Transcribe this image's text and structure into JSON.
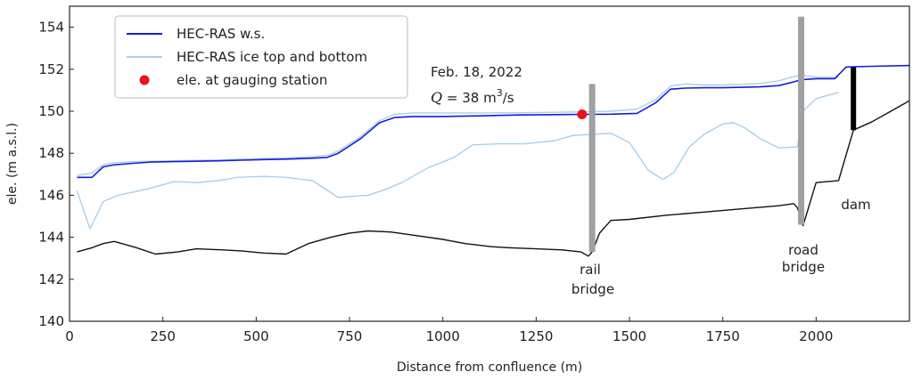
{
  "chart_data": {
    "type": "line",
    "title": "",
    "xlabel": "Distance from confluence (m)",
    "ylabel": "ele. (m a.s.l.)",
    "xlim": [
      0,
      2250
    ],
    "ylim": [
      140,
      155
    ],
    "xticks": [
      0,
      250,
      500,
      750,
      1000,
      1250,
      1500,
      1750,
      2000
    ],
    "yticks": [
      140,
      142,
      144,
      146,
      148,
      150,
      152,
      154
    ],
    "grid": false,
    "legend_position": "top-left",
    "legend": [
      {
        "label": "HEC-RAS w.s.",
        "color": "#1a1adb",
        "kind": "line"
      },
      {
        "label": "HEC-RAS ice top and bottom",
        "color": "#a9cfe8",
        "kind": "line"
      },
      {
        "label": "ele. at gauging station",
        "color": "#e8141b",
        "kind": "marker"
      }
    ],
    "series": [
      {
        "name": "HEC-RAS w.s.",
        "color": "#1a1adb",
        "x": [
          20,
          60,
          90,
          120,
          170,
          220,
          280,
          340,
          400,
          460,
          520,
          580,
          640,
          690,
          720,
          780,
          830,
          870,
          920,
          1000,
          1100,
          1200,
          1300,
          1380,
          1450,
          1520,
          1570,
          1610,
          1650,
          1700,
          1750,
          1800,
          1850,
          1900,
          1940,
          1960,
          2000,
          2050,
          2080,
          2100,
          2150,
          2250
        ],
        "y": [
          146.85,
          146.85,
          147.35,
          147.45,
          147.52,
          147.58,
          147.6,
          147.62,
          147.64,
          147.67,
          147.7,
          147.72,
          147.76,
          147.8,
          148.0,
          148.7,
          149.45,
          149.7,
          149.75,
          149.75,
          149.78,
          149.82,
          149.84,
          149.85,
          149.86,
          149.9,
          150.4,
          151.05,
          151.1,
          151.12,
          151.12,
          151.14,
          151.16,
          151.22,
          151.4,
          151.5,
          151.55,
          151.55,
          152.1,
          152.12,
          152.14,
          152.18
        ]
      },
      {
        "name": "HEC-RAS ice top",
        "color": "#a9cfe8",
        "x": [
          20,
          60,
          90,
          120,
          170,
          220,
          280,
          340,
          400,
          460,
          520,
          580,
          640,
          690,
          720,
          780,
          830,
          870,
          920,
          1000,
          1100,
          1200,
          1300,
          1380,
          1450,
          1520,
          1570,
          1610,
          1650,
          1700,
          1750,
          1800,
          1850,
          1900,
          1940,
          1960,
          2000,
          2060
        ],
        "y": [
          146.95,
          147.05,
          147.45,
          147.55,
          147.6,
          147.62,
          147.64,
          147.66,
          147.68,
          147.72,
          147.75,
          147.78,
          147.82,
          147.9,
          148.1,
          148.8,
          149.55,
          149.85,
          149.92,
          149.92,
          149.92,
          149.93,
          149.95,
          149.97,
          150.0,
          150.1,
          150.55,
          151.2,
          151.3,
          151.25,
          151.25,
          151.28,
          151.32,
          151.45,
          151.65,
          151.72,
          151.62,
          151.62
        ]
      },
      {
        "name": "HEC-RAS ice bottom",
        "color": "#a9cfe8",
        "x": [
          20,
          55,
          90,
          130,
          170,
          220,
          280,
          340,
          400,
          450,
          520,
          580,
          650,
          720,
          800,
          850,
          890,
          960,
          1030,
          1080,
          1150,
          1220,
          1300,
          1350,
          1400,
          1450,
          1500,
          1550,
          1590,
          1620,
          1660,
          1700,
          1750,
          1780,
          1810,
          1850,
          1900,
          1950,
          1965,
          2000,
          2060
        ],
        "y": [
          146.2,
          144.4,
          145.7,
          146.0,
          146.15,
          146.35,
          146.65,
          146.6,
          146.7,
          146.85,
          146.9,
          146.85,
          146.7,
          145.9,
          146.0,
          146.3,
          146.6,
          147.3,
          147.8,
          148.4,
          148.45,
          148.45,
          148.6,
          148.85,
          148.9,
          148.95,
          148.5,
          147.2,
          146.75,
          147.1,
          148.3,
          148.9,
          149.4,
          149.45,
          149.2,
          148.7,
          148.25,
          148.3,
          150.0,
          150.6,
          150.9
        ]
      },
      {
        "name": "bed",
        "color": "#111111",
        "x": [
          20,
          60,
          90,
          120,
          180,
          230,
          290,
          340,
          410,
          460,
          520,
          580,
          640,
          700,
          750,
          800,
          860,
          920,
          1000,
          1060,
          1130,
          1180,
          1250,
          1320,
          1370,
          1390,
          1400,
          1420,
          1450,
          1500,
          1600,
          1700,
          1800,
          1900,
          1940,
          1950,
          1965,
          2000,
          2060,
          2100,
          2150,
          2200,
          2250
        ],
        "y": [
          143.3,
          143.5,
          143.7,
          143.8,
          143.5,
          143.2,
          143.3,
          143.45,
          143.4,
          143.35,
          143.25,
          143.2,
          143.7,
          144.0,
          144.2,
          144.3,
          144.25,
          144.1,
          143.9,
          143.7,
          143.55,
          143.5,
          143.45,
          143.4,
          143.3,
          143.1,
          143.3,
          144.2,
          144.8,
          144.85,
          145.05,
          145.2,
          145.35,
          145.5,
          145.6,
          145.4,
          144.55,
          146.6,
          146.7,
          149.1,
          149.5,
          150.0,
          150.5
        ]
      }
    ],
    "gauging_station": {
      "x": 1373,
      "y": 149.85,
      "color": "#e8141b"
    },
    "piers": [
      {
        "x": 1400,
        "y0": 143.3,
        "y1": 151.3,
        "color": "#a0a0a0"
      },
      {
        "x": 1960,
        "y0": 144.6,
        "y1": 154.5,
        "color": "#a0a0a0"
      }
    ],
    "dam": {
      "x": 2100,
      "y0": 149.1,
      "y1": 152.1,
      "color": "#000000"
    },
    "annotations": {
      "date": "Feb. 18, 2022",
      "flow_q": "Q",
      "flow_eq": " = 38 m",
      "flow_exp": "3",
      "flow_unit": "/s",
      "rail_1": "rail",
      "rail_2": "bridge",
      "road_1": "road",
      "road_2": "bridge",
      "dam": "dam"
    }
  }
}
